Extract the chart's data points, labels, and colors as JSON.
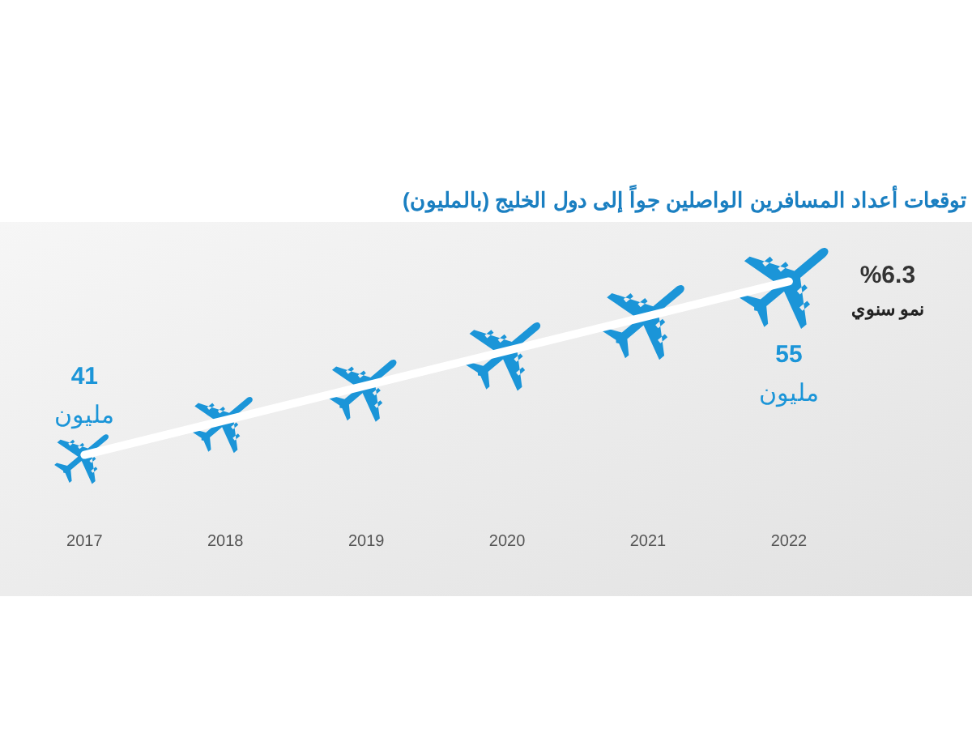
{
  "chart_data": {
    "type": "line",
    "title": "توقعات أعداد المسافرين الواصلين جواً إلى دول الخليج (بالمليون)",
    "xlim": [
      2016.4,
      2023.3
    ],
    "xticks": [
      2017,
      2018,
      2019,
      2020,
      2021,
      2022
    ],
    "ylim": [
      29.6,
      59.8
    ],
    "series": [
      {
        "color": "#ffffff",
        "x": [
          2017,
          2022
        ],
        "values": [
          41,
          55
        ],
        "value_labels": [
          "41\nمليون",
          "55\nمليون"
        ]
      }
    ],
    "annotations": [
      "%6.3\nنمو سنوي"
    ]
  }
}
